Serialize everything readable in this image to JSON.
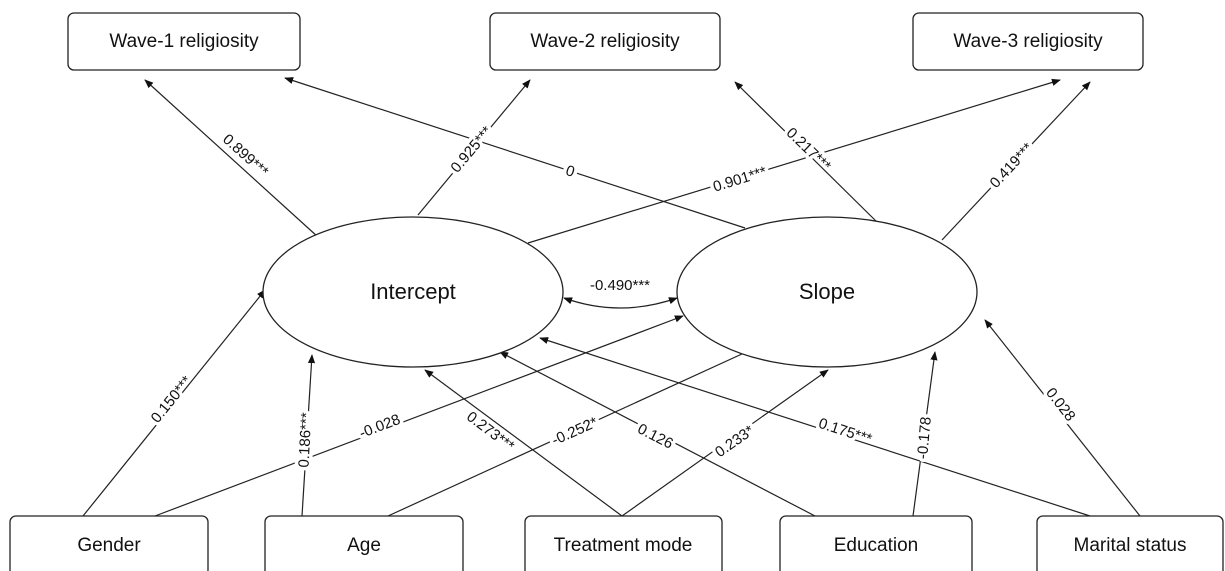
{
  "nodes": [
    {
      "label": "Wave-1 religiosity"
    },
    {
      "label": "Wave-2 religiosity"
    },
    {
      "label": "Wave-3 religiosity"
    },
    {
      "label": "Intercept"
    },
    {
      "label": "Slope"
    },
    {
      "label": "Gender"
    },
    {
      "label": "Age"
    },
    {
      "label": "Treatment mode"
    },
    {
      "label": "Education"
    },
    {
      "label": "Marital status"
    }
  ],
  "edges": [
    {
      "label": "0.899***"
    },
    {
      "label": "0.925***"
    },
    {
      "label": "0.901***"
    },
    {
      "label": "0"
    },
    {
      "label": "0.217***"
    },
    {
      "label": "0.419***"
    },
    {
      "label": "-0.490***"
    },
    {
      "label": "0.150***"
    },
    {
      "label": "-0.028"
    },
    {
      "label": "0.186***"
    },
    {
      "label": "-0.252*"
    },
    {
      "label": "0.273***"
    },
    {
      "label": "0.233*"
    },
    {
      "label": "0.126"
    },
    {
      "label": "-0.178"
    },
    {
      "label": "0.175***"
    },
    {
      "label": "0.028"
    }
  ]
}
